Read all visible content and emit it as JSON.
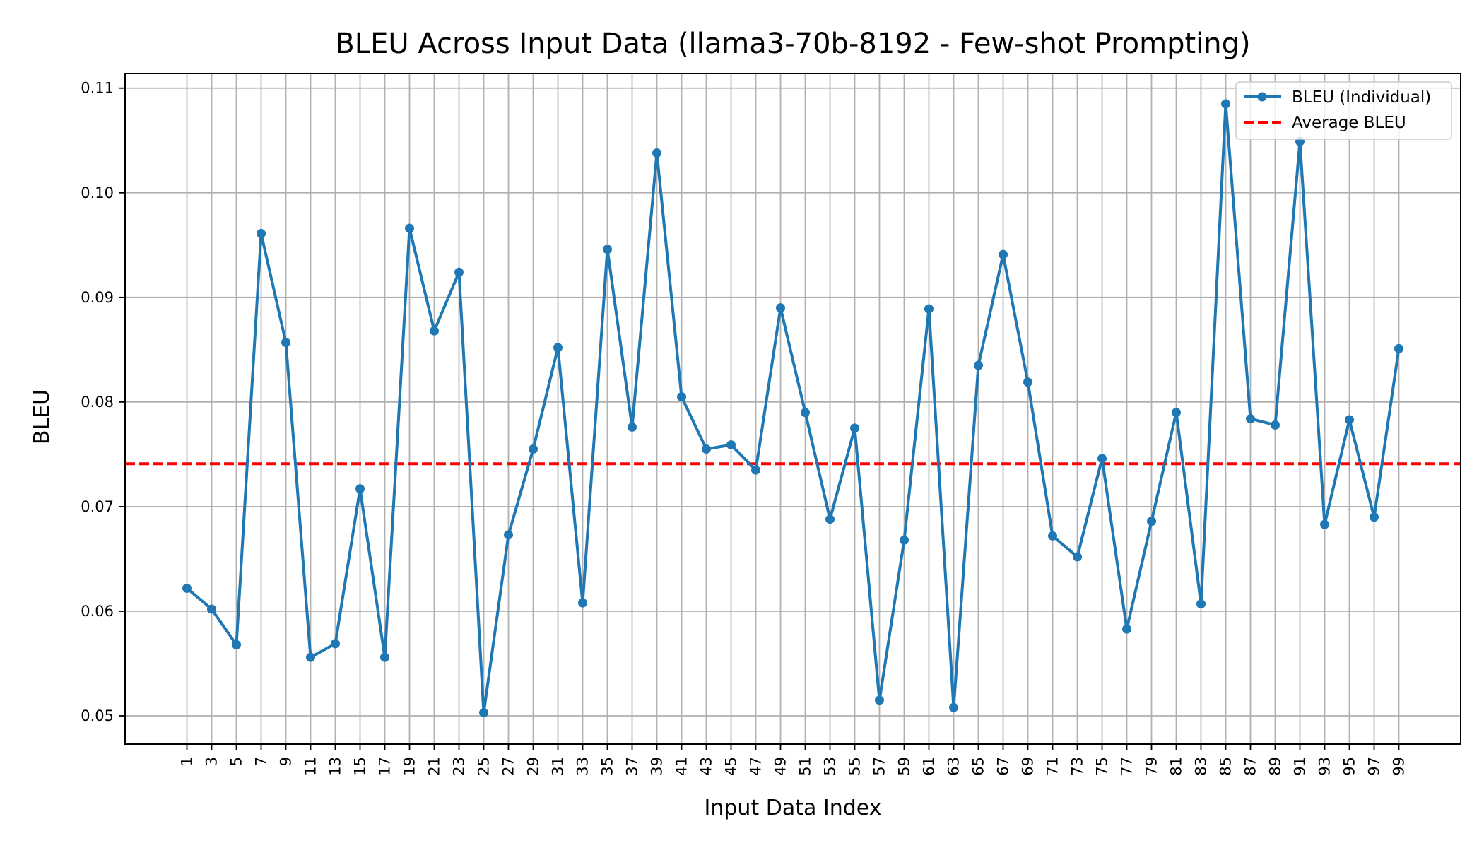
{
  "chart_data": {
    "type": "line",
    "title": "BLEU Across Input Data (llama3-70b-8192 - Few-shot Prompting)",
    "xlabel": "Input Data Index",
    "ylabel": "BLEU",
    "x": [
      1,
      3,
      5,
      7,
      9,
      11,
      13,
      15,
      17,
      19,
      21,
      23,
      25,
      27,
      29,
      31,
      33,
      35,
      37,
      39,
      41,
      43,
      45,
      47,
      49,
      51,
      53,
      55,
      57,
      59,
      61,
      63,
      65,
      67,
      69,
      71,
      73,
      75,
      77,
      79,
      81,
      83,
      85,
      87,
      89,
      91,
      93,
      95,
      97,
      99
    ],
    "xticks": [
      1,
      3,
      5,
      7,
      9,
      11,
      13,
      15,
      17,
      19,
      21,
      23,
      25,
      27,
      29,
      31,
      33,
      35,
      37,
      39,
      41,
      43,
      45,
      47,
      49,
      51,
      53,
      55,
      57,
      59,
      61,
      63,
      65,
      67,
      69,
      71,
      73,
      75,
      77,
      79,
      81,
      83,
      85,
      87,
      89,
      91,
      93,
      95,
      97,
      99
    ],
    "yticks": [
      0.05,
      0.06,
      0.07,
      0.08,
      0.09,
      0.1,
      0.11
    ],
    "ytick_labels": [
      "0.05",
      "0.06",
      "0.07",
      "0.08",
      "0.09",
      "0.10",
      "0.11"
    ],
    "xlim": [
      -4,
      104
    ],
    "ylim": [
      0.0473,
      0.1114
    ],
    "grid": true,
    "legend_position": "top-right",
    "series": [
      {
        "name": "BLEU (Individual)",
        "color": "#1f77b4",
        "marker": "circle",
        "values": [
          0.0622,
          0.0602,
          0.0568,
          0.0961,
          0.0857,
          0.0556,
          0.0569,
          0.0717,
          0.0556,
          0.0966,
          0.0868,
          0.0924,
          0.0503,
          0.0673,
          0.0755,
          0.0852,
          0.0608,
          0.0946,
          0.0776,
          0.1038,
          0.0805,
          0.0755,
          0.0759,
          0.0735,
          0.089,
          0.079,
          0.0688,
          0.0775,
          0.0515,
          0.0668,
          0.0889,
          0.0508,
          0.0835,
          0.0941,
          0.0819,
          0.0672,
          0.0652,
          0.0746,
          0.0583,
          0.0686,
          0.079,
          0.0607,
          0.1085,
          0.0784,
          0.0778,
          0.1049,
          0.0683,
          0.0783,
          0.069,
          0.0851
        ]
      },
      {
        "name": "Average BLEU",
        "color": "#ff0000",
        "style": "dashed",
        "value": 0.0741
      }
    ]
  }
}
